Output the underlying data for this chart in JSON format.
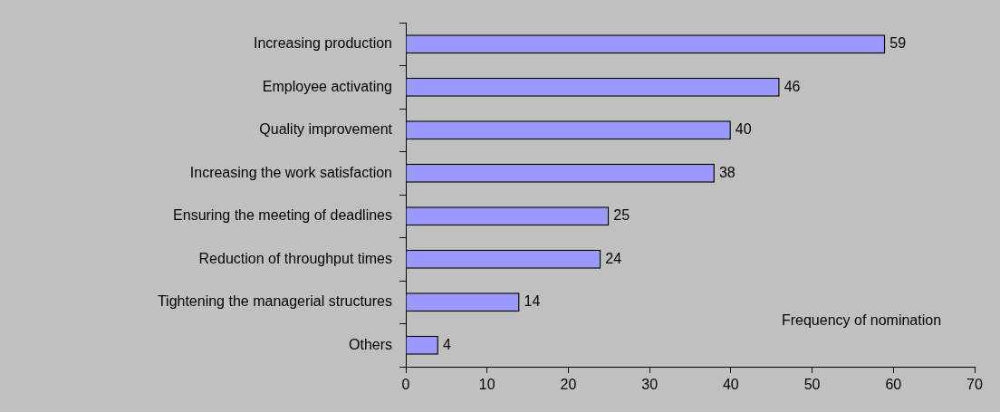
{
  "chart_data": {
    "type": "bar",
    "orientation": "horizontal",
    "xlabel": "Frequency of nomination",
    "categories": [
      "Increasing production",
      "Employee activating",
      "Quality improvement",
      "Increasing the work satisfaction",
      "Ensuring the meeting of deadlines",
      "Reduction of throughput times",
      "Tightening the managerial structures",
      "Others"
    ],
    "values": [
      59,
      46,
      40,
      38,
      25,
      24,
      14,
      4
    ],
    "color": "#9999ff",
    "xlim": [
      0,
      70
    ],
    "xticks": [
      0,
      10,
      20,
      30,
      40,
      50,
      60,
      70
    ],
    "data_labels": true,
    "legend": false
  }
}
